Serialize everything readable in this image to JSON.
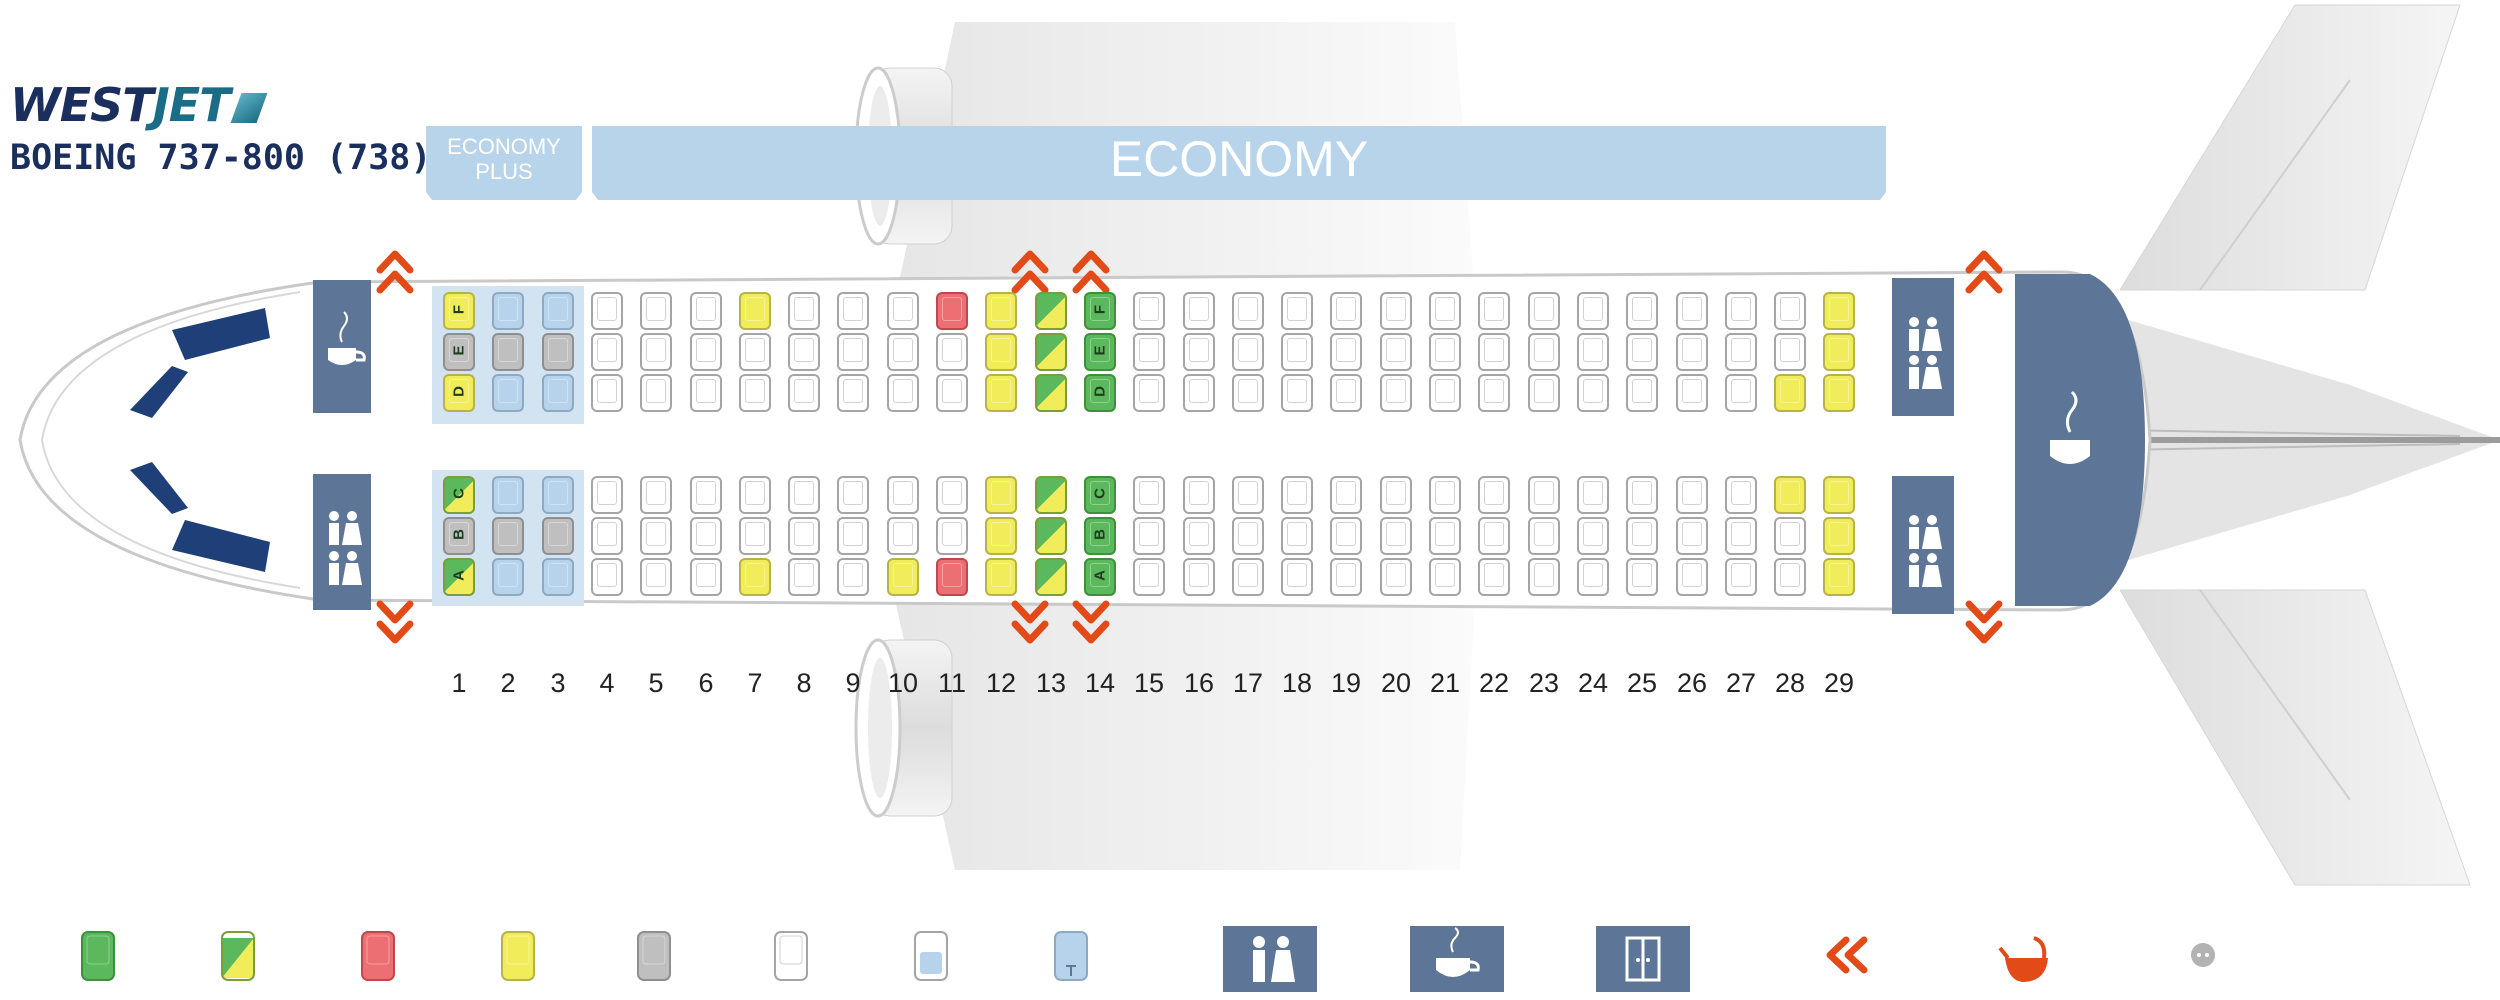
{
  "header": {
    "logo_text_a": "WEST",
    "logo_text_b": "JET",
    "aircraft": "BOEING 737-800 (738)"
  },
  "cabins": {
    "plus_line1": "ECONOMY",
    "plus_line2": "PLUS",
    "economy": "ECONOMY"
  },
  "rows": [
    "1",
    "2",
    "3",
    "4",
    "5",
    "6",
    "7",
    "8",
    "9",
    "10",
    "11",
    "12",
    "13",
    "14",
    "15",
    "16",
    "17",
    "18",
    "19",
    "20",
    "21",
    "22",
    "23",
    "24",
    "25",
    "26",
    "27",
    "28",
    "29"
  ],
  "seat_letters_upper": [
    "F",
    "E",
    "D"
  ],
  "seat_letters_lower": [
    "C",
    "B",
    "A"
  ],
  "seat_status": {
    "1": {
      "F": "yellow",
      "E": "gray",
      "D": "yellow",
      "C": "diag",
      "B": "gray",
      "A": "diag"
    },
    "2": {
      "F": "blue",
      "E": "gray",
      "D": "blue",
      "C": "blue",
      "B": "gray",
      "A": "blue"
    },
    "3": {
      "F": "blue",
      "E": "gray",
      "D": "blue",
      "C": "blue",
      "B": "gray",
      "A": "blue"
    },
    "7": {
      "F": "yellow",
      "A": "yellow"
    },
    "10": {
      "A": "yellow"
    },
    "11": {
      "F": "red",
      "A": "red"
    },
    "12": {
      "F": "yellow",
      "E": "yellow",
      "D": "yellow",
      "C": "yellow",
      "B": "yellow",
      "A": "yellow"
    },
    "13": {
      "F": "diag",
      "E": "diag",
      "D": "diag",
      "C": "diag",
      "B": "diag",
      "A": "diag"
    },
    "14": {
      "F": "green",
      "E": "green",
      "D": "green",
      "C": "green",
      "B": "green",
      "A": "green"
    },
    "28": {
      "D": "yellow",
      "C": "yellow"
    },
    "29": {
      "F": "yellow",
      "E": "yellow",
      "D": "yellow",
      "C": "yellow",
      "B": "yellow",
      "A": "yellow"
    }
  },
  "lettered_rows": [
    "1",
    "14"
  ],
  "colors": {
    "green": "#5cb85c",
    "yellow": "#f1ec5a",
    "red": "#ec6f74",
    "gray": "#bfbfbf",
    "blue": "#b7d3ec",
    "panel": "#5d7596",
    "exit": "#e24a18",
    "cabin_band": "#b8d4ea"
  },
  "legend": [
    {
      "icon": "green-seat-icon"
    },
    {
      "icon": "green-yellow-seat-icon"
    },
    {
      "icon": "red-seat-icon"
    },
    {
      "icon": "yellow-seat-icon"
    },
    {
      "icon": "gray-seat-icon"
    },
    {
      "icon": "white-seat-icon"
    },
    {
      "icon": "power-outlet-seat-icon"
    },
    {
      "icon": "usb-seat-icon"
    },
    {
      "icon": "lavatory-icon"
    },
    {
      "icon": "galley-icon"
    },
    {
      "icon": "closet-icon"
    },
    {
      "icon": "exit-icon"
    },
    {
      "icon": "bassinet-icon"
    },
    {
      "icon": "power-outlet-icon"
    }
  ]
}
